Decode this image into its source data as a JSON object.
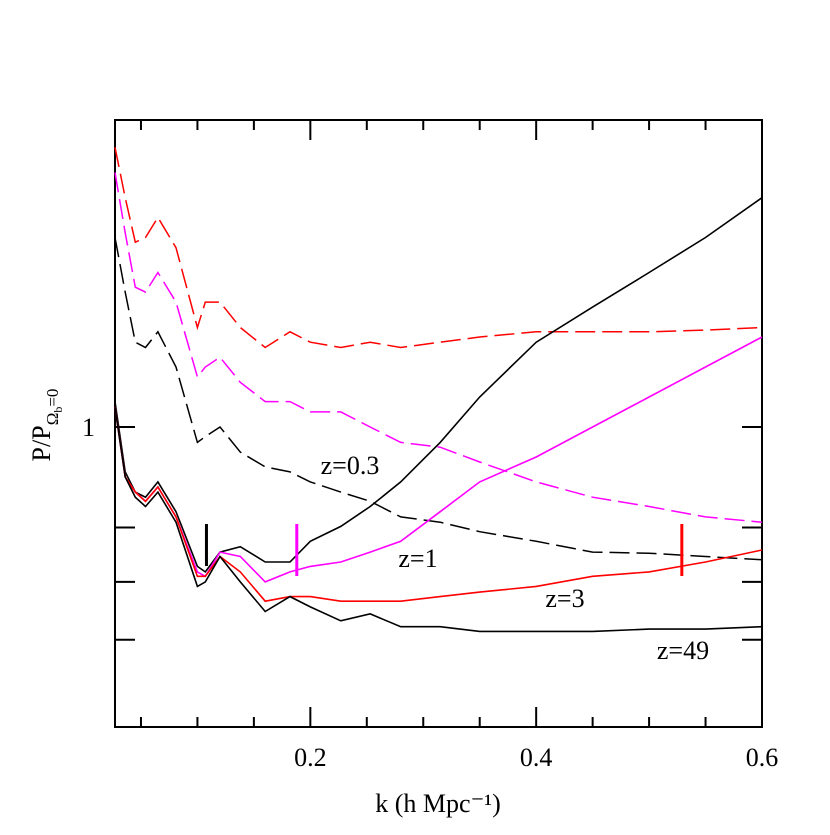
{
  "chart_data": {
    "type": "line",
    "xlabel": "k (h Mpc⁻¹)",
    "ylabel": {
      "main": "P/P",
      "sub": "Ω",
      "subsub": "b",
      "tail": "=0"
    },
    "x": [
      0.027,
      0.036,
      0.045,
      0.054,
      0.065,
      0.081,
      0.1,
      0.107,
      0.12,
      0.138,
      0.16,
      0.182,
      0.2,
      0.227,
      0.253,
      0.28,
      0.315,
      0.35,
      0.4,
      0.45,
      0.5,
      0.55,
      0.6
    ],
    "series": [
      {
        "color": "#ff0000",
        "dashed": true,
        "values": [
          1.341,
          1.272,
          1.214,
          1.22,
          1.246,
          1.207,
          1.11,
          1.14,
          1.14,
          1.11,
          1.087,
          1.105,
          1.093,
          1.087,
          1.093,
          1.087,
          1.093,
          1.099,
          1.105,
          1.105,
          1.105,
          1.107,
          1.11
        ]
      },
      {
        "color": "#ff00ff",
        "dashed": true,
        "values": [
          1.306,
          1.226,
          1.158,
          1.152,
          1.176,
          1.14,
          1.054,
          1.065,
          1.076,
          1.048,
          1.027,
          1.027,
          1.016,
          1.016,
          1.0,
          0.984,
          0.979,
          0.964,
          0.944,
          0.929,
          0.92,
          0.91,
          0.905
        ]
      },
      {
        "color": "#000000",
        "dashed": true,
        "values": [
          1.22,
          1.152,
          1.093,
          1.087,
          1.105,
          1.065,
          0.984,
          0.99,
          1.0,
          0.974,
          0.959,
          0.954,
          0.944,
          0.934,
          0.925,
          0.91,
          0.905,
          0.896,
          0.887,
          0.877,
          0.876,
          0.873,
          0.87
        ]
      },
      {
        "name": "z=0.3",
        "color": "#000000",
        "dashed": false,
        "values": [
          1.027,
          0.954,
          0.934,
          0.929,
          0.944,
          0.915,
          0.864,
          0.859,
          0.877,
          0.882,
          0.868,
          0.868,
          0.887,
          0.901,
          0.92,
          0.944,
          0.984,
          1.032,
          1.093,
          1.134,
          1.176,
          1.22,
          1.272
        ]
      },
      {
        "name": "z=1",
        "color": "#ff00ff",
        "dashed": false,
        "values": [
          1.021,
          0.949,
          0.934,
          0.925,
          0.939,
          0.91,
          0.859,
          0.855,
          0.877,
          0.873,
          0.85,
          0.859,
          0.864,
          0.868,
          0.877,
          0.887,
          0.915,
          0.944,
          0.969,
          1.0,
          1.032,
          1.065,
          1.099
        ]
      },
      {
        "name": "z=3",
        "color": "#ff0000",
        "dashed": false,
        "values": [
          1.021,
          0.949,
          0.934,
          0.925,
          0.939,
          0.91,
          0.855,
          0.855,
          0.873,
          0.859,
          0.833,
          0.837,
          0.837,
          0.833,
          0.833,
          0.833,
          0.837,
          0.841,
          0.846,
          0.855,
          0.859,
          0.868,
          0.879
        ]
      },
      {
        "name": "z=49",
        "color": "#000000",
        "dashed": false,
        "values": [
          1.021,
          0.949,
          0.929,
          0.92,
          0.934,
          0.905,
          0.846,
          0.85,
          0.873,
          0.85,
          0.824,
          0.837,
          0.828,
          0.816,
          0.822,
          0.811,
          0.811,
          0.807,
          0.807,
          0.807,
          0.809,
          0.809,
          0.811
        ]
      }
    ],
    "markers": [
      {
        "x": 0.108,
        "color": "#000000"
      },
      {
        "x": 0.188,
        "color": "#ff00ff"
      },
      {
        "x": 0.529,
        "color": "#ff0000"
      }
    ],
    "xlim": [
      0.027,
      0.6
    ],
    "xticks": [
      0.2,
      0.4,
      0.6
    ],
    "xminor": [
      0.05,
      0.1,
      0.15,
      0.25,
      0.3,
      0.35,
      0.45,
      0.5,
      0.55
    ],
    "ylim": [
      0.73,
      1.38
    ],
    "yticks": [
      1
    ],
    "yminor": [
      0.8,
      0.85,
      0.9
    ],
    "ylog": true
  }
}
